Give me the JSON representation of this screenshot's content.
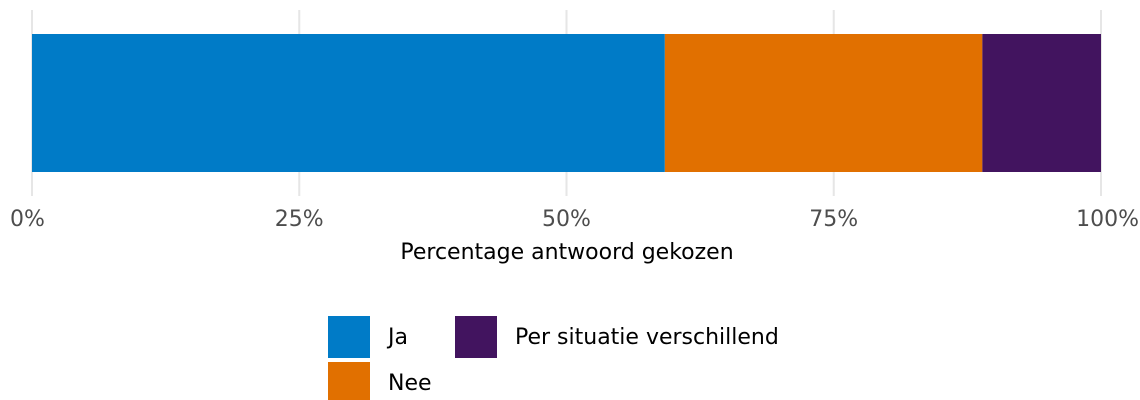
{
  "chart_data": {
    "type": "stacked-bar-horizontal",
    "x_label": "Percentage antwoord gekozen",
    "series": [
      {
        "name": "Ja",
        "color": "#007bc7",
        "values": [
          59.2
        ]
      },
      {
        "name": "Nee",
        "color": "#e17000",
        "values": [
          29.7
        ]
      },
      {
        "name": "Per situatie verschillend",
        "color": "#42145f",
        "values": [
          11.1
        ]
      }
    ],
    "xlim": [
      0,
      100
    ],
    "xticks": [
      {
        "value": 0,
        "label": "0%"
      },
      {
        "value": 25,
        "label": "25%"
      },
      {
        "value": 50,
        "label": "50%"
      },
      {
        "value": 75,
        "label": "75%"
      },
      {
        "value": 100,
        "label": "100%"
      }
    ],
    "grid": true,
    "legend": "bottom"
  }
}
